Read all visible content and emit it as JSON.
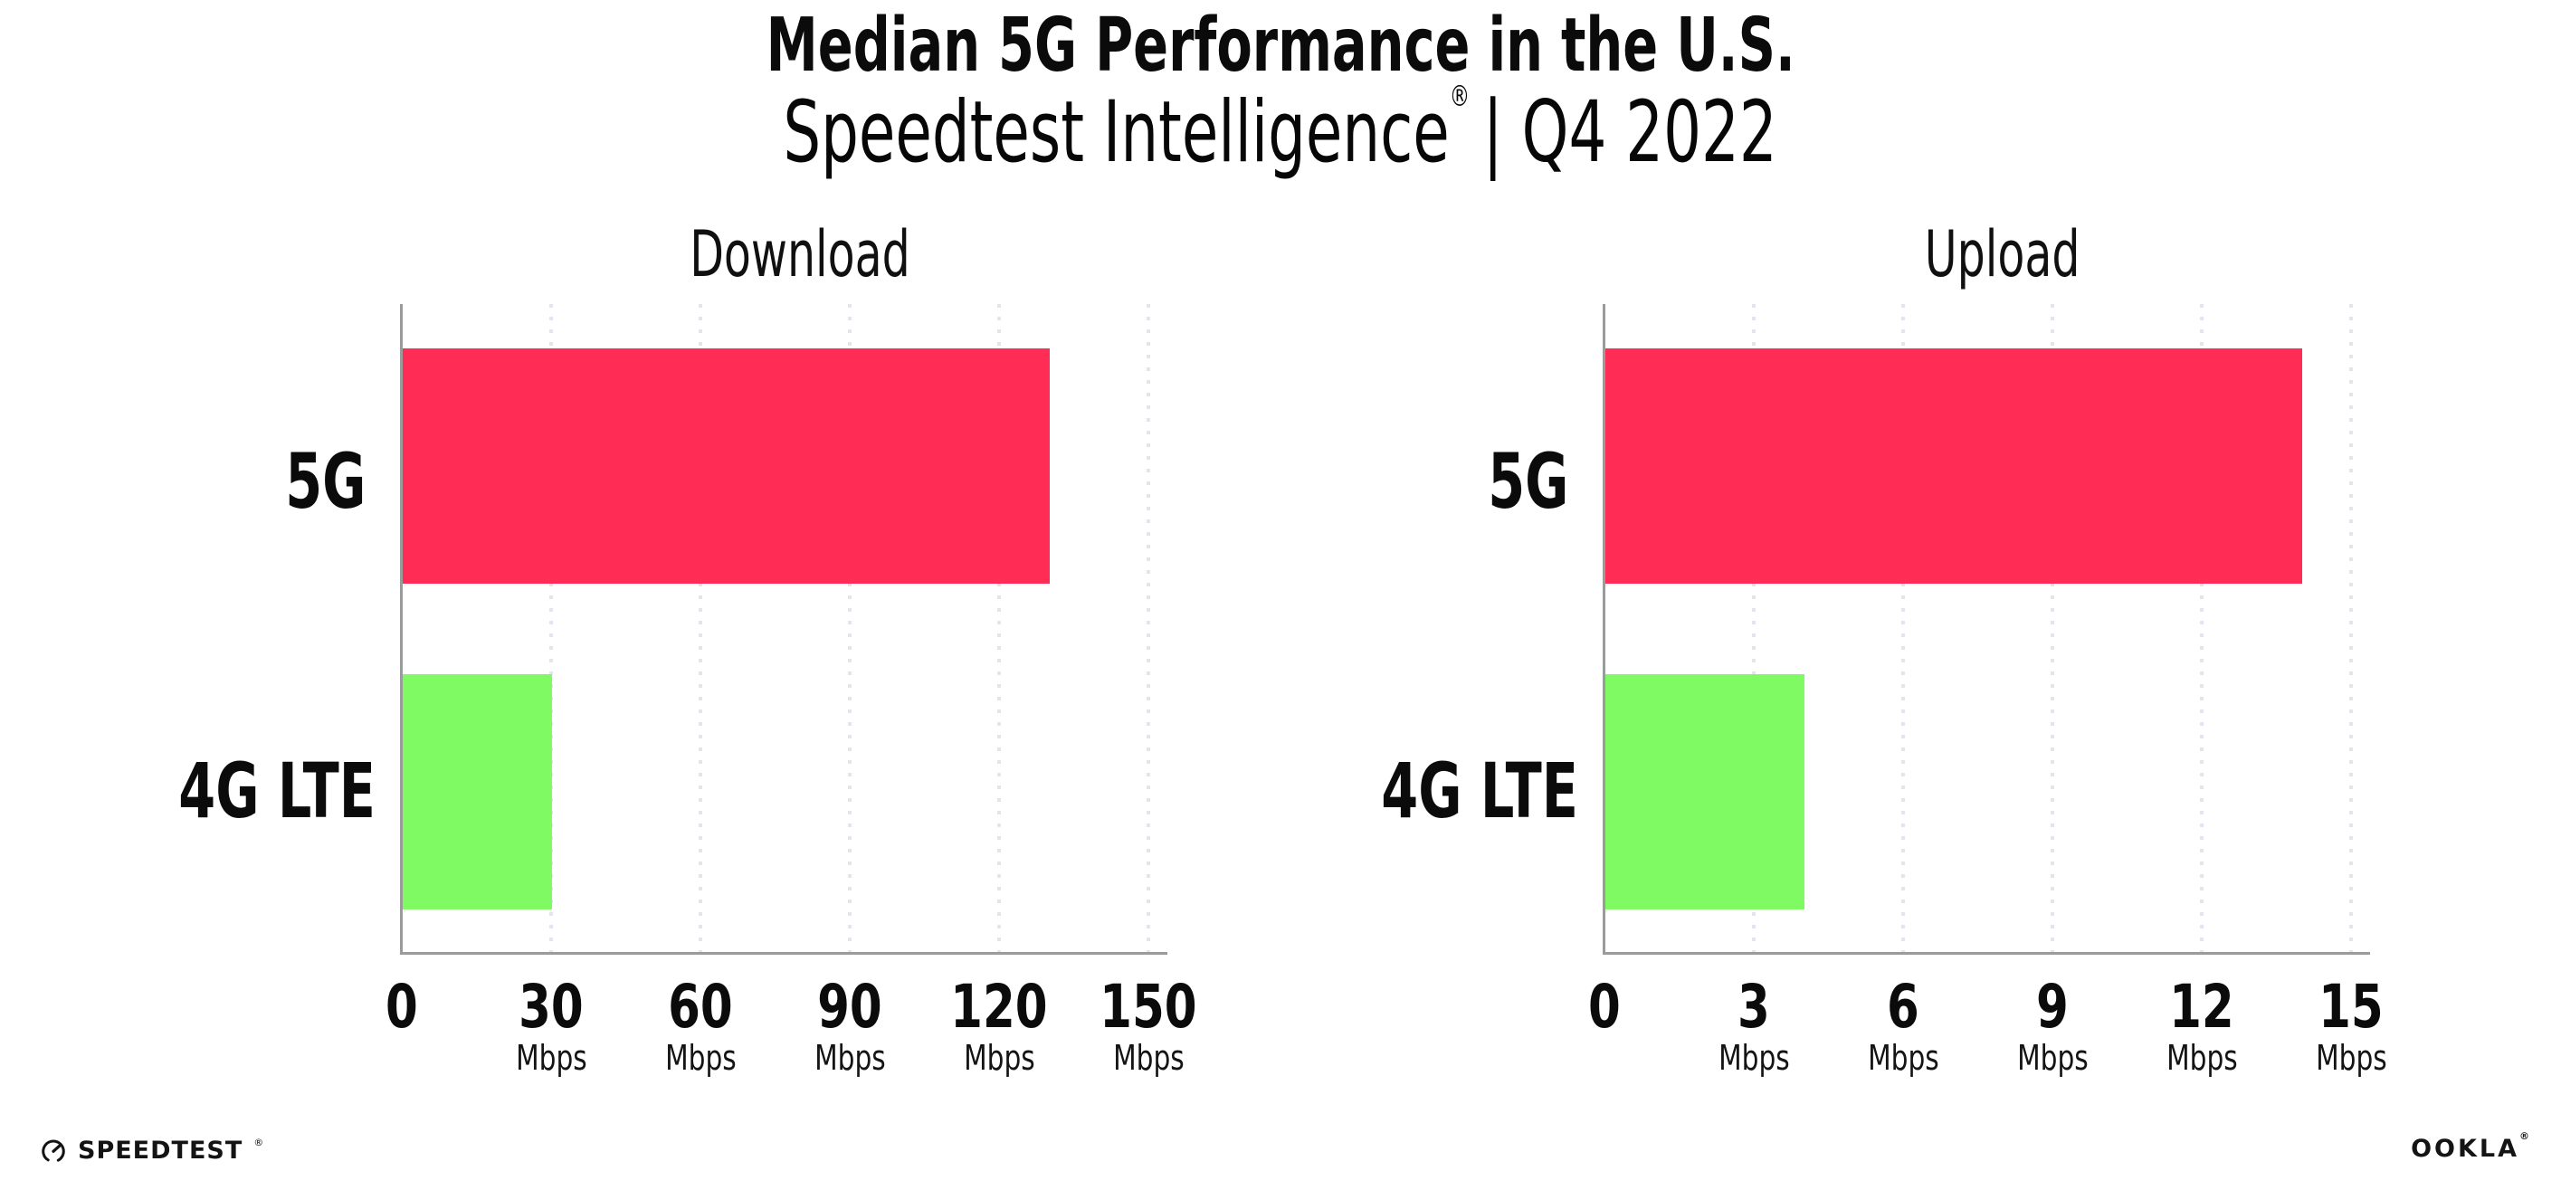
{
  "header": {
    "title": "Median 5G Performance in the U.S.",
    "subtitle_brand": "Speedtest Intelligence",
    "subtitle_mark": "®",
    "subtitle_rest": "| Q4 2022"
  },
  "colors": {
    "bar_5g": "#ff2d56",
    "bar_4g_lte": "#7ffa62",
    "axis": "#9b9b9b",
    "gridline": "#e4e4ee",
    "text": "#0b0b0b"
  },
  "chart_data": [
    {
      "type": "bar",
      "orientation": "horizontal",
      "title": "Download",
      "categories": [
        "5G",
        "4G LTE"
      ],
      "values": [
        130,
        30
      ],
      "unit": "Mbps",
      "xticks": [
        0,
        30,
        60,
        90,
        120,
        150
      ],
      "xlim": [
        0,
        160
      ],
      "grid": "dotted-vertical",
      "legend": "none",
      "bar_colors": [
        "#ff2d56",
        "#7ffa62"
      ]
    },
    {
      "type": "bar",
      "orientation": "horizontal",
      "title": "Upload",
      "categories": [
        "5G",
        "4G LTE"
      ],
      "values": [
        14,
        4
      ],
      "unit": "Mbps",
      "xticks": [
        0,
        3,
        6,
        9,
        12,
        15
      ],
      "xlim": [
        0,
        16
      ],
      "grid": "dotted-vertical",
      "legend": "none",
      "bar_colors": [
        "#ff2d56",
        "#7ffa62"
      ]
    }
  ],
  "footer": {
    "speedtest": "SPEEDTEST",
    "speedtest_mark": "®",
    "ookla": "OOKLA",
    "ookla_mark": "®"
  }
}
